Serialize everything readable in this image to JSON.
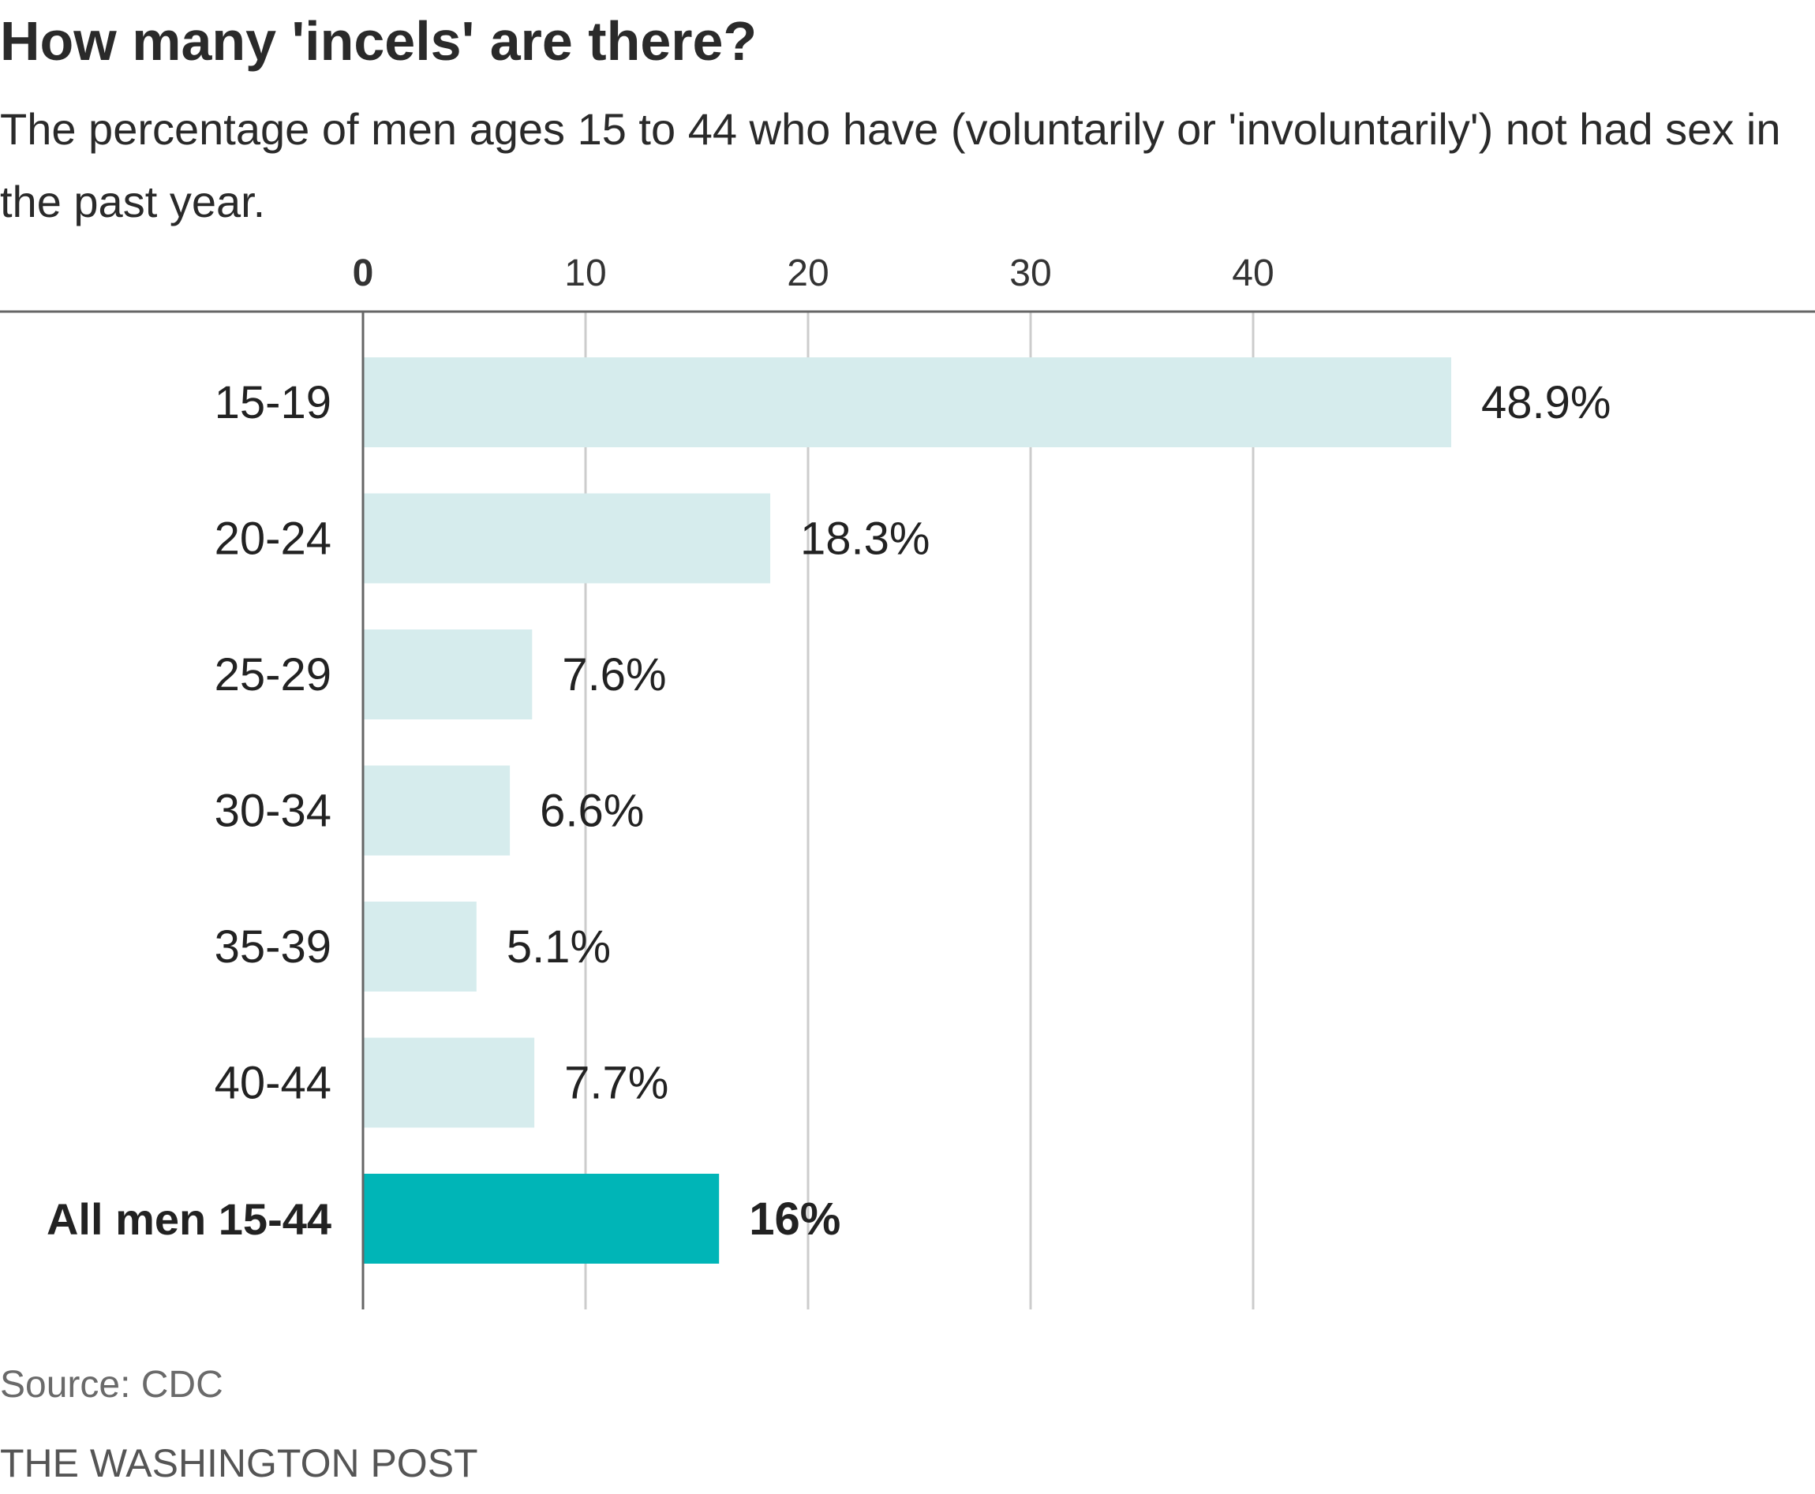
{
  "chart_data": {
    "type": "bar",
    "orientation": "horizontal",
    "title": "How many 'incels' are there?",
    "subtitle": "The percentage of men ages 15 to 44 who have (voluntarily or 'involuntarily') not had sex in the past year.",
    "categories": [
      "15-19",
      "20-24",
      "25-29",
      "30-34",
      "35-39",
      "40-44",
      "All men 15-44"
    ],
    "values": [
      48.9,
      18.3,
      7.6,
      6.6,
      5.1,
      7.7,
      16
    ],
    "value_labels": [
      "48.9%",
      "18.3%",
      "7.6%",
      "6.6%",
      "5.1%",
      "7.7%",
      "16%"
    ],
    "highlighted_category": "All men 15-44",
    "x_ticks": [
      0,
      10,
      20,
      30,
      40
    ],
    "x_tick_labels": [
      "0",
      "10",
      "20",
      "30",
      "40"
    ],
    "xlim": [
      0,
      65
    ],
    "xlabel": "",
    "ylabel": "",
    "grid": true,
    "axis_position": "top",
    "colors": {
      "bar": "#d6eced",
      "highlight_bar": "#00b5b7",
      "gridline": "#cccccc",
      "axis": "#666666",
      "text": "#222222"
    }
  },
  "source": "Source: CDC",
  "credit": "THE WASHINGTON POST"
}
